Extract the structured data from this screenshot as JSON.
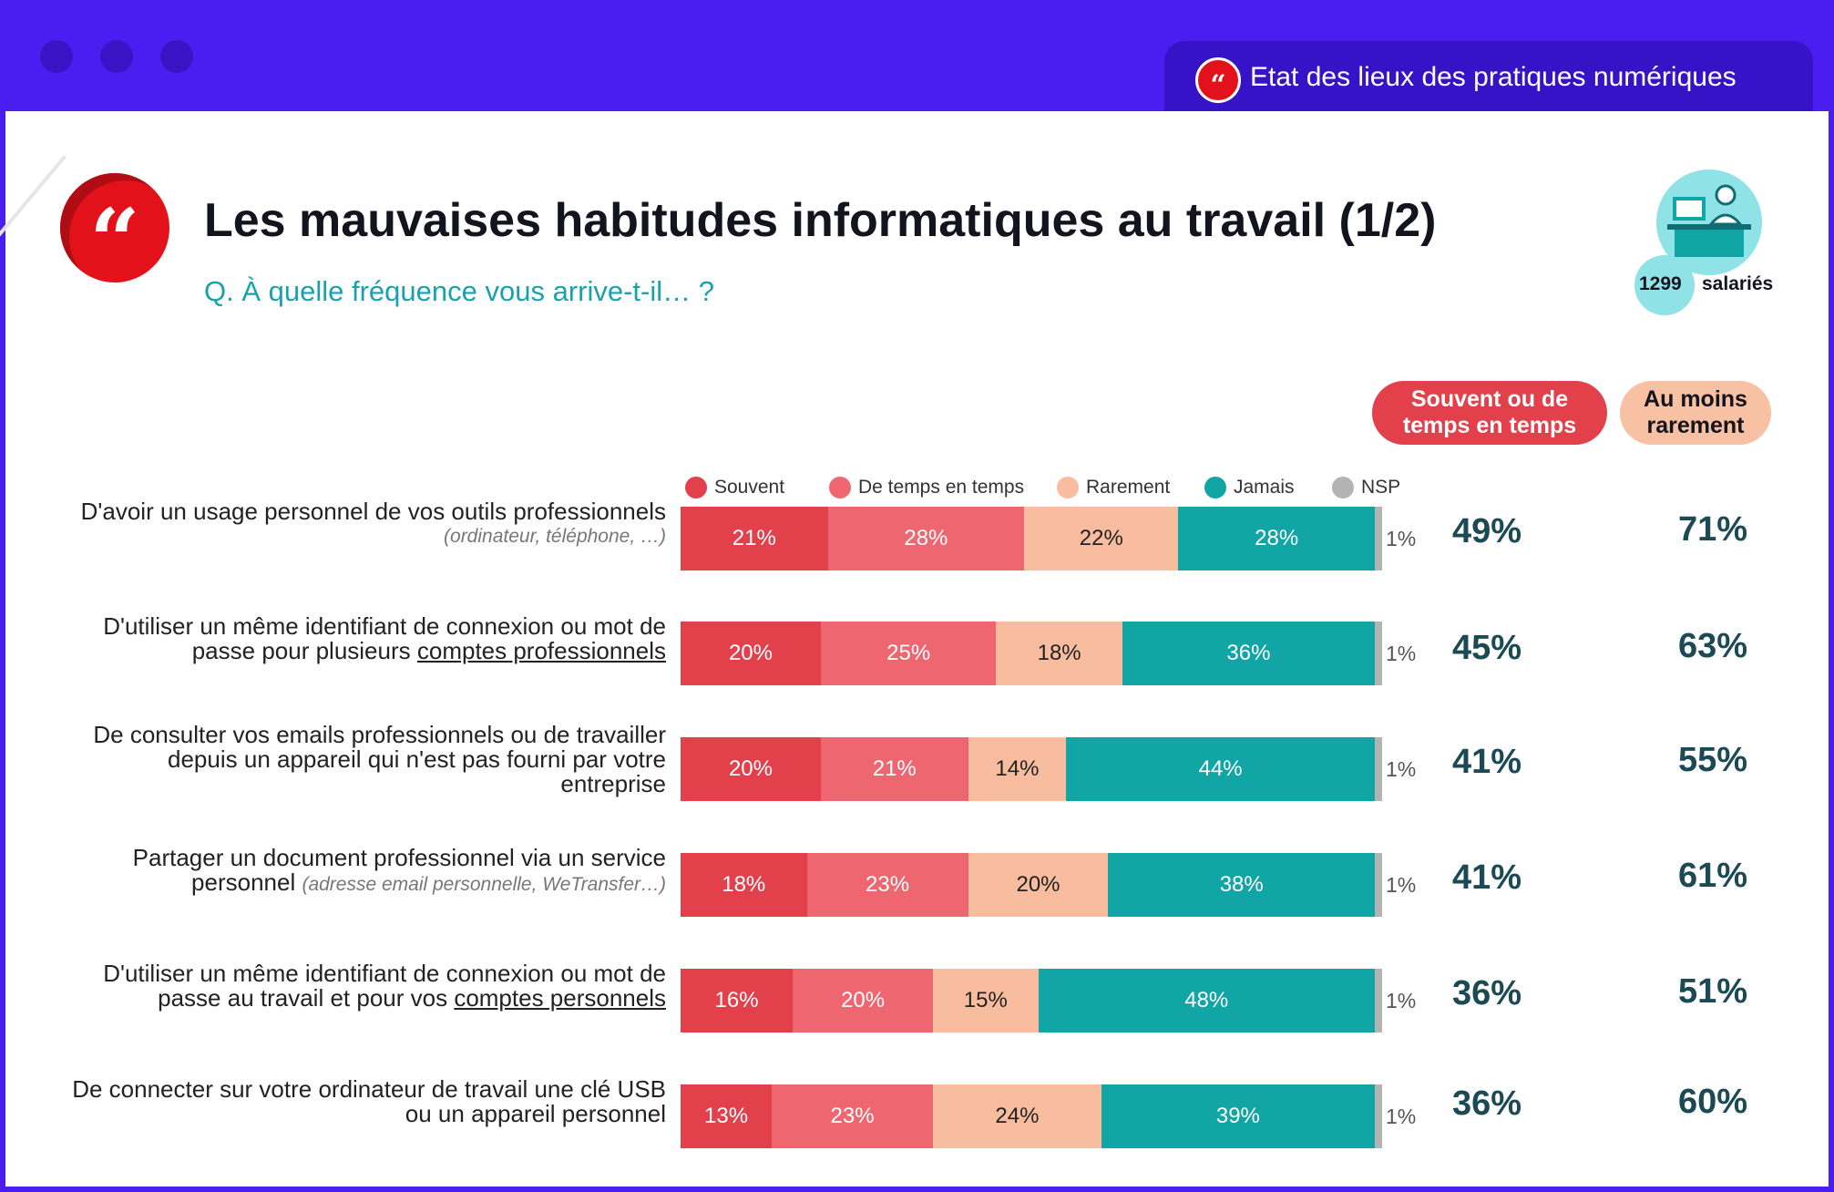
{
  "window": {
    "tab_title": "Etat des lieux des pratiques numériques",
    "tab_icon": "quote-icon"
  },
  "header": {
    "title": "Les mauvaises habitudes informatiques au travail (1/2)",
    "subtitle": "Q. À quelle fréquence vous arrive-t-il… ?",
    "sample_count": "1299",
    "sample_label": "salariés"
  },
  "columns": {
    "souvent_ou_dtet": "Souvent ou de temps en temps",
    "au_moins_rarement": "Au moins rarement"
  },
  "colors": {
    "souvent": "#e2404b",
    "de_temps": "#ee6670",
    "rarement": "#f8bd9e",
    "jamais": "#12a5a6",
    "nsp": "#b3b3b3",
    "accent": "#4a1df0",
    "brand_red": "#e3111a"
  },
  "chart_data": {
    "type": "bar",
    "orientation": "horizontal",
    "stacked": true,
    "title": "Les mauvaises habitudes informatiques au travail (1/2)",
    "legend": [
      "Souvent",
      "De temps en temps",
      "Rarement",
      "Jamais",
      "NSP"
    ],
    "categories": [
      "D'avoir un usage personnel de vos outils professionnels (ordinateur, téléphone, …)",
      "D'utiliser un même identifiant de connexion ou mot de passe pour plusieurs comptes professionnels",
      "De consulter vos emails professionnels ou de travailler depuis un appareil qui n'est pas fourni par votre entreprise",
      "Partager un document professionnel via un service personnel (adresse email personnelle, WeTransfer…)",
      "D'utiliser un même identifiant de connexion ou mot de passe au travail et pour vos comptes personnels",
      "De connecter sur votre ordinateur de travail une clé USB ou un appareil personnel"
    ],
    "series": [
      {
        "name": "Souvent",
        "values": [
          21,
          20,
          20,
          18,
          16,
          13
        ]
      },
      {
        "name": "De temps en temps",
        "values": [
          28,
          25,
          21,
          23,
          20,
          23
        ]
      },
      {
        "name": "Rarement",
        "values": [
          22,
          18,
          14,
          20,
          15,
          24
        ]
      },
      {
        "name": "Jamais",
        "values": [
          28,
          36,
          44,
          38,
          48,
          39
        ]
      },
      {
        "name": "NSP",
        "values": [
          1,
          1,
          1,
          1,
          1,
          1
        ]
      }
    ],
    "souvent_ou_de_temps_en_temps": [
      49,
      45,
      41,
      41,
      36,
      36
    ],
    "au_moins_rarement": [
      71,
      63,
      55,
      61,
      51,
      60
    ],
    "unit": "%"
  },
  "rows": [
    {
      "l1": "D'avoir un usage personnel de vos outils professionnels",
      "sub": "(ordinateur, téléphone, …)"
    },
    {
      "l1": "D'utiliser un même identifiant de connexion ou mot de",
      "l2a": "passe pour plusieurs ",
      "l2u": "comptes professionnels"
    },
    {
      "l1": "De consulter vos emails professionnels ou de travailler",
      "l2": "depuis un appareil qui n'est pas fourni par votre",
      "l3": "entreprise"
    },
    {
      "l1": "Partager un document professionnel via un service",
      "l2a": "personnel ",
      "sub": "(adresse email personnelle, WeTransfer…)"
    },
    {
      "l1": "D'utiliser un même identifiant de connexion ou mot de",
      "l2a": "passe au travail et pour vos ",
      "l2u": "comptes personnels"
    },
    {
      "l1": "De connecter sur votre ordinateur de travail une clé USB",
      "l2": "ou un appareil personnel"
    }
  ]
}
